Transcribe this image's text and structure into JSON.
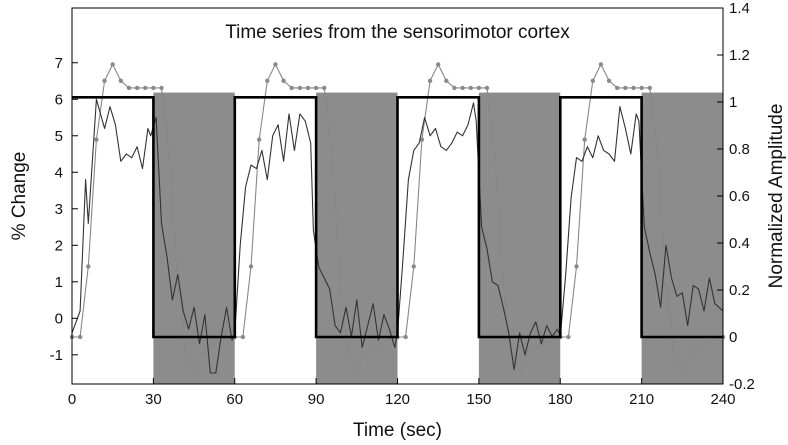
{
  "chart_data": {
    "type": "line",
    "title": "Time series from the sensorimotor cortex",
    "xlabel": "Time (sec)",
    "ylabel_left": "% Change",
    "ylabel_right": "Normalized Amplitude",
    "xlim": [
      0,
      240
    ],
    "ylim_left": [
      -1.8,
      8.5
    ],
    "ylim_right": [
      -0.2,
      1.4
    ],
    "x_ticks": [
      "0",
      "30",
      "60",
      "90",
      "120",
      "150",
      "180",
      "210",
      "240"
    ],
    "y_left_ticks": [
      "-1",
      "0",
      "1",
      "2",
      "3",
      "4",
      "5",
      "6",
      "7"
    ],
    "y_right_ticks": [
      "-0.2",
      "0",
      "0.2",
      "0.4",
      "0.6",
      "0.8",
      "1",
      "1.2",
      "1.4"
    ],
    "shaded_intervals": [
      [
        30,
        60
      ],
      [
        90,
        120
      ],
      [
        150,
        180
      ],
      [
        210,
        240
      ]
    ],
    "shade_top_right": 1.04,
    "colors": {
      "shade": "#8c8c8c",
      "box": "#000000",
      "signal": "#333333",
      "model": "#888888",
      "marker": "#8a8a8a"
    },
    "series": [
      {
        "role": "boxcar",
        "axis": "right",
        "x": [
          0,
          30,
          30,
          60,
          60,
          90,
          90,
          120,
          120,
          150,
          150,
          180,
          180,
          210,
          210,
          240
        ],
        "values": [
          1.02,
          1.02,
          0,
          0,
          1.02,
          1.02,
          0,
          0,
          1.02,
          1.02,
          0,
          0,
          1.02,
          1.02,
          0,
          0
        ]
      },
      {
        "role": "measured signal",
        "axis": "left",
        "x": [
          0,
          3,
          5,
          6,
          9,
          12,
          14,
          16,
          18,
          20,
          22,
          24,
          26,
          28,
          29,
          31,
          33,
          35,
          37,
          39,
          41,
          43,
          45,
          47,
          49,
          51,
          53,
          55,
          57,
          59,
          60,
          62,
          64,
          66,
          68,
          70,
          72,
          74,
          76,
          78,
          80,
          82,
          84,
          86,
          88,
          89,
          91,
          93,
          95,
          97,
          99,
          101,
          103,
          105,
          107,
          109,
          111,
          113,
          115,
          117,
          119,
          120,
          122,
          124,
          126,
          128,
          130,
          132,
          134,
          136,
          138,
          140,
          142,
          144,
          146,
          148,
          149,
          151,
          153,
          155,
          157,
          159,
          161,
          163,
          165,
          167,
          169,
          171,
          173,
          175,
          177,
          179,
          180,
          182,
          184,
          186,
          188,
          190,
          192,
          194,
          196,
          198,
          200,
          202,
          204,
          206,
          208,
          209,
          211,
          213,
          215,
          217,
          219,
          221,
          223,
          225,
          227,
          229,
          231,
          233,
          235,
          237,
          240
        ],
        "values": [
          -0.4,
          0.2,
          3.8,
          2.6,
          6.0,
          5.2,
          5.8,
          5.3,
          4.3,
          4.5,
          4.4,
          4.7,
          4.1,
          5.2,
          5.0,
          5.5,
          2.6,
          1.7,
          0.5,
          1.2,
          0.2,
          -0.3,
          0.3,
          -0.7,
          0.1,
          -1.5,
          -1.5,
          -0.5,
          0.3,
          -0.6,
          -0.4,
          2.0,
          3.6,
          4.2,
          4.1,
          4.6,
          3.8,
          5.0,
          5.3,
          4.3,
          5.6,
          4.6,
          5.6,
          5.4,
          4.8,
          2.4,
          1.4,
          1.1,
          0.8,
          -0.2,
          -0.4,
          0.3,
          -0.5,
          0.5,
          -0.8,
          -0.2,
          0.4,
          -0.6,
          0.1,
          -0.3,
          -0.8,
          -0.4,
          1.6,
          3.8,
          4.6,
          4.8,
          5.5,
          5.0,
          5.2,
          4.7,
          4.6,
          4.8,
          5.1,
          5.0,
          5.3,
          5.9,
          5.4,
          2.5,
          1.9,
          1.0,
          0.9,
          0.3,
          -0.4,
          -1.4,
          -0.4,
          -1.0,
          -0.4,
          -0.1,
          -0.7,
          -0.2,
          -0.5,
          -0.3,
          -0.5,
          1.2,
          3.3,
          4.4,
          4.3,
          4.7,
          4.4,
          5.0,
          4.6,
          4.5,
          4.3,
          5.8,
          5.2,
          4.5,
          5.6,
          5.4,
          2.5,
          1.8,
          1.2,
          0.3,
          2.0,
          1.1,
          0.6,
          0.7,
          -0.2,
          0.9,
          0.8,
          0.2,
          1.1,
          0.4,
          0.2
        ]
      },
      {
        "role": "model response",
        "axis": "right",
        "x": [
          0,
          3,
          6,
          9,
          12,
          15,
          18,
          21,
          24,
          27,
          30,
          33,
          36,
          39,
          42,
          45,
          48,
          51,
          54,
          57,
          60,
          63,
          66,
          69,
          72,
          75,
          78,
          81,
          84,
          87,
          90,
          93,
          96,
          99,
          102,
          105,
          108,
          111,
          114,
          117,
          120,
          123,
          126,
          129,
          132,
          135,
          138,
          141,
          144,
          147,
          150,
          153,
          156,
          159,
          162,
          165,
          168,
          171,
          174,
          177,
          180,
          183,
          186,
          189,
          192,
          195,
          198,
          201,
          204,
          207,
          210,
          213,
          216,
          219,
          222,
          225,
          228,
          231,
          234,
          237,
          240
        ],
        "values": [
          0,
          0,
          0.3,
          0.84,
          1.09,
          1.16,
          1.09,
          1.06,
          1.06,
          1.06,
          1.06,
          1.06,
          0.76,
          0.22,
          -0.07,
          -0.14,
          -0.07,
          -0.04,
          -0.03,
          -0.01,
          0,
          0,
          0.3,
          0.84,
          1.09,
          1.16,
          1.09,
          1.06,
          1.06,
          1.06,
          1.06,
          1.06,
          0.76,
          0.22,
          -0.07,
          -0.14,
          -0.07,
          -0.04,
          -0.03,
          -0.01,
          0,
          0,
          0.3,
          0.84,
          1.09,
          1.16,
          1.09,
          1.06,
          1.06,
          1.06,
          1.06,
          1.06,
          0.76,
          0.22,
          -0.07,
          -0.14,
          -0.07,
          -0.04,
          -0.03,
          -0.01,
          0,
          0,
          0.3,
          0.84,
          1.09,
          1.16,
          1.09,
          1.06,
          1.06,
          1.06,
          1.06,
          1.06,
          0.76,
          0.22,
          -0.07,
          -0.14,
          -0.07,
          -0.04,
          -0.03,
          -0.01,
          0
        ]
      }
    ]
  }
}
